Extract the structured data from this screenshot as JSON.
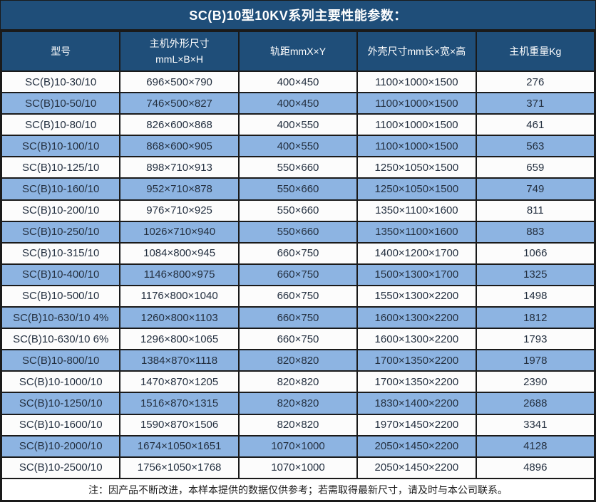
{
  "title": "SC(B)10型10KV系列主要性能参数：",
  "colors": {
    "header_bg": "#1F4E79",
    "row_alt_bg": "#8DB4E2",
    "row_bg": "#FCFCFC",
    "border": "#1A1A1A",
    "text": "#243040",
    "header_text": "#FFFFFF"
  },
  "table": {
    "columns": [
      {
        "lines": [
          "型号"
        ]
      },
      {
        "lines": [
          "主机外形尺寸",
          "mmL×B×H"
        ]
      },
      {
        "lines": [
          "轨距mmX×Y"
        ]
      },
      {
        "lines": [
          "外壳尺寸mm长×宽×高"
        ]
      },
      {
        "lines": [
          "主机重量Kg"
        ]
      }
    ],
    "rows": [
      [
        "SC(B)10-30/10",
        "696×500×790",
        "400×450",
        "1100×1000×1500",
        "276"
      ],
      [
        "SC(B)10-50/10",
        "746×500×827",
        "400×450",
        "1100×1000×1500",
        "371"
      ],
      [
        "SC(B)10-80/10",
        "826×600×868",
        "400×550",
        "1100×1000×1500",
        "461"
      ],
      [
        "SC(B)10-100/10",
        "868×600×905",
        "400×550",
        "1100×1000×1500",
        "563"
      ],
      [
        "SC(B)10-125/10",
        "898×710×913",
        "550×660",
        "1250×1050×1500",
        "659"
      ],
      [
        "SC(B)10-160/10",
        "952×710×878",
        "550×660",
        "1250×1050×1500",
        "749"
      ],
      [
        "SC(B)10-200/10",
        "976×710×925",
        "550×660",
        "1350×1100×1600",
        "811"
      ],
      [
        "SC(B)10-250/10",
        "1026×710×940",
        "550×660",
        "1350×1100×1600",
        "883"
      ],
      [
        "SC(B)10-315/10",
        "1084×800×945",
        "660×750",
        "1400×1200×1700",
        "1066"
      ],
      [
        "SC(B)10-400/10",
        "1146×800×975",
        "660×750",
        "1500×1300×1700",
        "1325"
      ],
      [
        "SC(B)10-500/10",
        "1176×800×1040",
        "660×750",
        "1550×1300×2200",
        "1498"
      ],
      [
        "SC(B)10-630/10 4%",
        "1260×800×1103",
        "660×750",
        "1600×1300×2200",
        "1812"
      ],
      [
        "SC(B)10-630/10 6%",
        "1296×800×1065",
        "660×750",
        "1600×1300×2200",
        "1793"
      ],
      [
        "SC(B)10-800/10",
        "1384×870×1118",
        "820×820",
        "1700×1350×2200",
        "1978"
      ],
      [
        "SC(B)10-1000/10",
        "1470×870×1205",
        "820×820",
        "1700×1350×2200",
        "2390"
      ],
      [
        "SC(B)10-1250/10",
        "1516×870×1315",
        "820×820",
        "1830×1400×2200",
        "2688"
      ],
      [
        "SC(B)10-1600/10",
        "1590×870×1506",
        "820×820",
        "1970×1450×2200",
        "3341"
      ],
      [
        "SC(B)10-2000/10",
        "1674×1050×1651",
        "1070×1000",
        "2050×1450×2200",
        "4128"
      ],
      [
        "SC(B)10-2500/10",
        "1756×1050×1768",
        "1070×1000",
        "2050×1450×2200",
        "4896"
      ]
    ]
  },
  "footer": {
    "note": "注：因产品不断改进，本样本提供的数据仅供参考；若需取得最新尺寸，请及时与本公司联系。"
  }
}
